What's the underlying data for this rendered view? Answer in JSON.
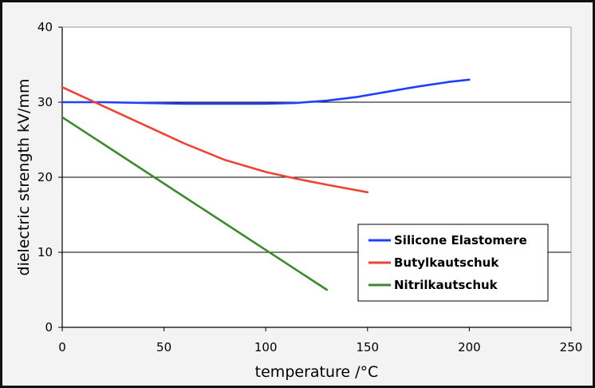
{
  "chart_data": {
    "type": "line",
    "title": "",
    "xlabel": "temperature /°C",
    "ylabel": "dielectric strength kV/mm",
    "xlim": [
      0,
      250
    ],
    "ylim": [
      0,
      40
    ],
    "x_ticks": [
      "0",
      "50",
      "100",
      "150",
      "200",
      "250"
    ],
    "y_ticks": [
      "0",
      "10",
      "20",
      "30",
      "40"
    ],
    "grid": "horizontal",
    "legend_position": "lower-right",
    "series": [
      {
        "name": "Silicone Elastomere",
        "color": "#1f3fff",
        "points": [
          [
            0,
            30
          ],
          [
            20,
            30
          ],
          [
            40,
            29.9
          ],
          [
            60,
            29.8
          ],
          [
            80,
            29.8
          ],
          [
            100,
            29.8
          ],
          [
            115,
            29.9
          ],
          [
            130,
            30.2
          ],
          [
            145,
            30.7
          ],
          [
            160,
            31.4
          ],
          [
            175,
            32.1
          ],
          [
            190,
            32.7
          ],
          [
            200,
            33
          ]
        ]
      },
      {
        "name": "Butylkautschuk",
        "color": "#ee4433",
        "points": [
          [
            0,
            32
          ],
          [
            20,
            29.5
          ],
          [
            40,
            27
          ],
          [
            60,
            24.5
          ],
          [
            80,
            22.3
          ],
          [
            100,
            20.7
          ],
          [
            115,
            19.8
          ],
          [
            130,
            19
          ],
          [
            150,
            18
          ]
        ]
      },
      {
        "name": "Nitrilkautschuk",
        "color": "#3a8a2a",
        "points": [
          [
            0,
            28
          ],
          [
            130,
            5
          ]
        ]
      }
    ]
  }
}
